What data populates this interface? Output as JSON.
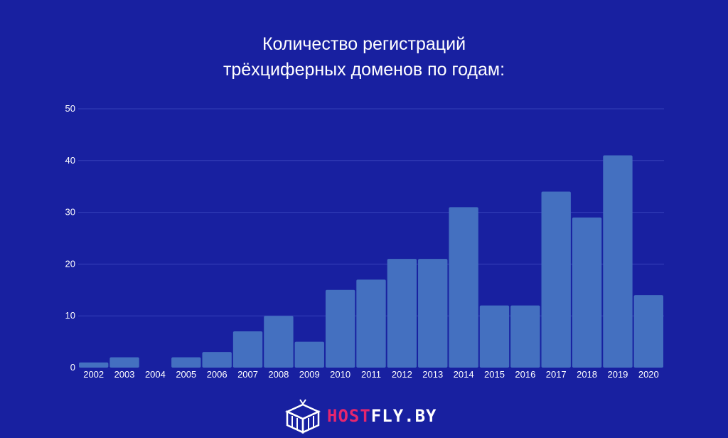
{
  "chart_data": {
    "type": "bar",
    "title_line1": "Количество регистраций",
    "title_line2": "трёхциферных доменов по годам:",
    "xlabel": "",
    "ylabel": "",
    "ylim": [
      0,
      50
    ],
    "yticks": [
      "0",
      "10",
      "20",
      "30",
      "40",
      "50"
    ],
    "grid": true,
    "categories": [
      "2002",
      "2003",
      "2004",
      "2005",
      "2006",
      "2007",
      "2008",
      "2009",
      "2010",
      "2011",
      "2012",
      "2013",
      "2014",
      "2015",
      "2016",
      "2017",
      "2018",
      "2019",
      "2020"
    ],
    "values": [
      1,
      2,
      0,
      2,
      3,
      7,
      10,
      5,
      15,
      17,
      21,
      21,
      31,
      12,
      12,
      34,
      29,
      41,
      14
    ]
  },
  "colors": {
    "background": "#1820a0",
    "bar": "#4470c0",
    "grid": "#3540b8",
    "tick_text": "#ffffff",
    "logo_accent": "#e6266e"
  },
  "logo": {
    "part1": "HOST",
    "part2": "FLY.BY",
    "icon": "hostfly-logo-icon"
  }
}
